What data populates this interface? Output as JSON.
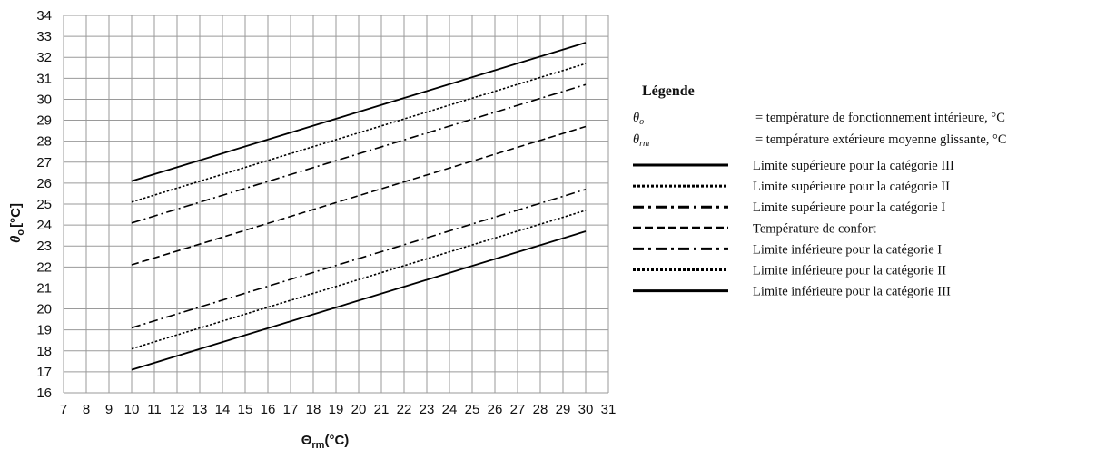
{
  "chart_data": {
    "type": "line",
    "xlabel": "Θrm",
    "xlabel_main": "Θ",
    "xlabel_sub": "rm",
    "xlabel_unit": "(°C)",
    "ylabel": "θo [°C]",
    "ylabel_main": "θ",
    "ylabel_sub": "o",
    "ylabel_unit": "[°C]",
    "xlim": [
      7,
      31
    ],
    "ylim": [
      16,
      34
    ],
    "xticks": [
      7,
      8,
      9,
      10,
      11,
      12,
      13,
      14,
      15,
      16,
      17,
      18,
      19,
      20,
      21,
      22,
      23,
      24,
      25,
      26,
      27,
      28,
      29,
      30,
      31
    ],
    "yticks": [
      16,
      17,
      18,
      19,
      20,
      21,
      22,
      23,
      24,
      25,
      26,
      27,
      28,
      29,
      30,
      31,
      32,
      33,
      34
    ],
    "grid": true,
    "legend_position": "right",
    "series": [
      {
        "name": "Limite supérieure pour la catégorie III",
        "style": "solid",
        "x": [
          10,
          30
        ],
        "y": [
          26.1,
          32.7
        ]
      },
      {
        "name": "Limite supérieure pour la catégorie II",
        "style": "dotted",
        "x": [
          10,
          30
        ],
        "y": [
          25.1,
          31.7
        ]
      },
      {
        "name": "Limite supérieure pour la catégorie I",
        "style": "dashdot",
        "x": [
          10,
          30
        ],
        "y": [
          24.1,
          30.7
        ]
      },
      {
        "name": "Température de confort",
        "style": "dashed",
        "x": [
          10,
          30
        ],
        "y": [
          22.1,
          28.7
        ]
      },
      {
        "name": "Limite inférieure pour la catégorie I",
        "style": "dashdot",
        "x": [
          10,
          30
        ],
        "y": [
          19.1,
          25.7
        ]
      },
      {
        "name": "Limite inférieure pour la catégorie II",
        "style": "dotted",
        "x": [
          10,
          30
        ],
        "y": [
          18.1,
          24.7
        ]
      },
      {
        "name": "Limite inférieure pour la catégorie III",
        "style": "solid",
        "x": [
          10,
          30
        ],
        "y": [
          17.1,
          23.7
        ]
      }
    ],
    "legend": {
      "title": "Légende",
      "definitions": [
        {
          "symbol": "θ",
          "sub": "o",
          "text": "= température de fonctionnement intérieure, °C"
        },
        {
          "symbol": "θ",
          "sub": "rm",
          "text": "= température extérieure moyenne glissante, °C"
        }
      ]
    }
  },
  "colors": {
    "line": "#000000",
    "grid": "#9a9a9a",
    "background": "#ffffff"
  }
}
